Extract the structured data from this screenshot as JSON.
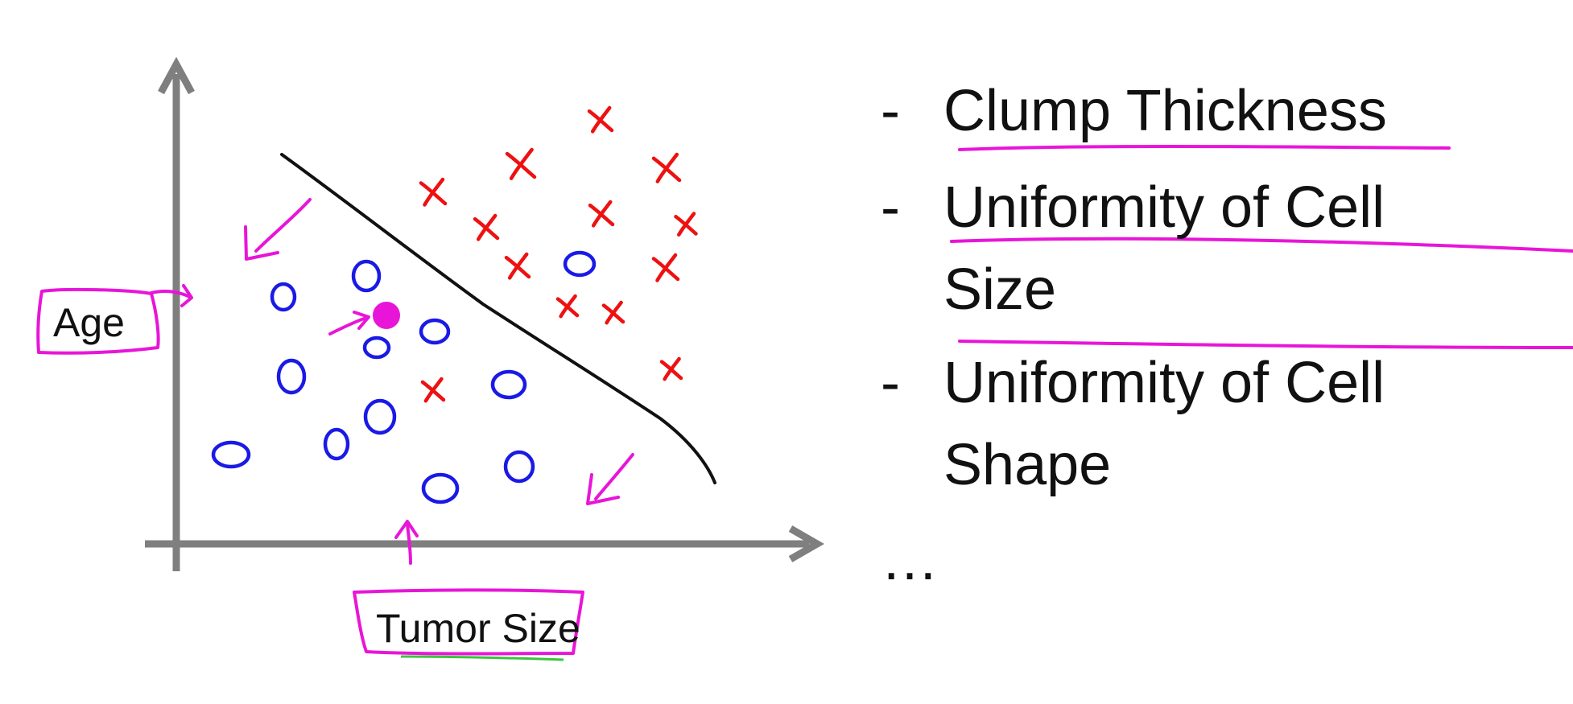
{
  "diagram": {
    "axes": {
      "y_label": "Age",
      "x_label": "Tumor Size"
    },
    "features": [
      {
        "dash": "-",
        "lines": [
          "Clump Thickness"
        ]
      },
      {
        "dash": "-",
        "lines": [
          "Uniformity of Cell",
          "Size"
        ]
      },
      {
        "dash": "-",
        "lines": [
          "Uniformity of Cell",
          "Shape"
        ]
      }
    ],
    "ellipsis": "…",
    "colors": {
      "axis": "#7f7f7f",
      "benign_mark": "#1a1ae6",
      "malignant_mark": "#ee1111",
      "annotation": "#e815d8",
      "boundary": "#111111",
      "text": "#111111"
    },
    "marks": {
      "benign_symbol": "o",
      "malignant_symbol": "x",
      "query_point_symbol": "filled-dot"
    }
  }
}
